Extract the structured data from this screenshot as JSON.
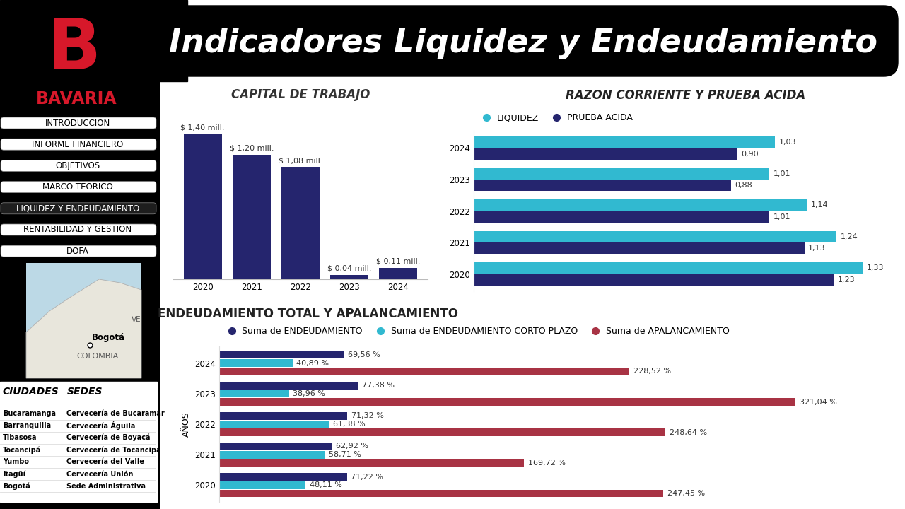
{
  "header": {
    "title": "Indicadores Liquidez y Endeudamiento",
    "logo_letter": "B",
    "logo": "BAVARIA"
  },
  "menu": {
    "items": [
      "INTRODUCCION",
      "INFORME FINANCIERO",
      "OBJETIVOS",
      "MARCO TEORICO",
      "LIQUIDEZ Y ENDEUDAMIENTO",
      "RENTABILIDAD Y GESTION",
      "DOFA"
    ],
    "selected": "LIQUIDEZ Y ENDEUDAMIENTO"
  },
  "map": {
    "city": "Bogotá",
    "country": "COLOMBIA",
    "neighbor": "VE"
  },
  "table": {
    "columns": [
      "CIUDADES",
      "SEDES"
    ],
    "rows": [
      [
        "Bucaramanga",
        "Cervecería de Bucaramar"
      ],
      [
        "Barranquilla",
        "Cervecería Águila"
      ],
      [
        "Tibasosa",
        "Cervecería de Boyacá"
      ],
      [
        "Tocancipá",
        "Cervecería de Tocancipá"
      ],
      [
        "Yumbo",
        "Cervecería del Valle"
      ],
      [
        "Itagüí",
        "Cervecería Unión"
      ],
      [
        "Bogotá",
        "Sede Administrativa"
      ]
    ]
  },
  "chart_data": [
    {
      "type": "bar",
      "title": "CAPITAL DE TRABAJO",
      "categories": [
        "2020",
        "2021",
        "2022",
        "2023",
        "2024"
      ],
      "values": [
        1.4,
        1.2,
        1.08,
        0.04,
        0.11
      ],
      "value_labels": [
        "$ 1,40 mill.",
        "$ 1,20 mill.",
        "$ 1,08 mill.",
        "$ 0,04 mill.",
        "$ 0,11 mill."
      ],
      "color": "#25256e",
      "ylim": [
        0,
        1.6
      ],
      "data_labels": true,
      "tick_labels": "x",
      "grid": false
    },
    {
      "type": "bar",
      "orientation": "horizontal",
      "title": "RAZON CORRIENTE Y PRUEBA ACIDA",
      "categories": [
        "2020",
        "2021",
        "2022",
        "2023",
        "2024"
      ],
      "series": [
        {
          "name": "LIQUIDEZ",
          "color": "#31b9d0",
          "values": [
            1.33,
            1.24,
            1.14,
            1.01,
            1.03
          ],
          "value_labels": [
            "1,33",
            "1,24",
            "1,14",
            "1,01",
            "1,03"
          ]
        },
        {
          "name": "PRUEBA ACIDA",
          "color": "#25256e",
          "values": [
            1.23,
            1.13,
            1.01,
            0.88,
            0.9
          ],
          "value_labels": [
            "1,23",
            "1,13",
            "1,01",
            "0,88",
            "0,90"
          ]
        }
      ],
      "xlim": [
        0,
        1.45
      ],
      "legend": "upper left",
      "data_labels": true,
      "tick_labels": "y",
      "grid": false
    },
    {
      "type": "bar",
      "orientation": "horizontal",
      "title": "ENDEUDAMIENTO TOTAL Y APALANCAMIENTO",
      "y_label": "AÑOS",
      "categories": [
        "2020",
        "2021",
        "2022",
        "2023",
        "2024"
      ],
      "series": [
        {
          "name": "Suma de ENDEUDAMIENTO",
          "color": "#25256e",
          "values": [
            71.22,
            62.92,
            71.32,
            77.38,
            69.56
          ],
          "value_labels": [
            "71,22 %",
            "62,92 %",
            "71,32 %",
            "77,38 %",
            "69,56 %"
          ]
        },
        {
          "name": "Suma de ENDEUDAMIENTO CORTO PLAZO",
          "color": "#31b9d0",
          "values": [
            48.11,
            58.71,
            61.38,
            38.96,
            40.89
          ],
          "value_labels": [
            "48,11 %",
            "58,71 %",
            "61,38 %",
            "38,96 %",
            "40,89 %"
          ]
        },
        {
          "name": "Suma de APALANCAMIENTO",
          "color": "#a83344",
          "values": [
            247.45,
            169.72,
            248.64,
            321.04,
            228.52
          ],
          "value_labels": [
            "247,45 %",
            "169,72 %",
            "248,64 %",
            "321,04 %",
            "228,52 %"
          ]
        }
      ],
      "xlim": [
        0,
        380
      ],
      "legend": "upper left",
      "data_labels": true,
      "tick_labels": "y",
      "grid": false
    }
  ]
}
